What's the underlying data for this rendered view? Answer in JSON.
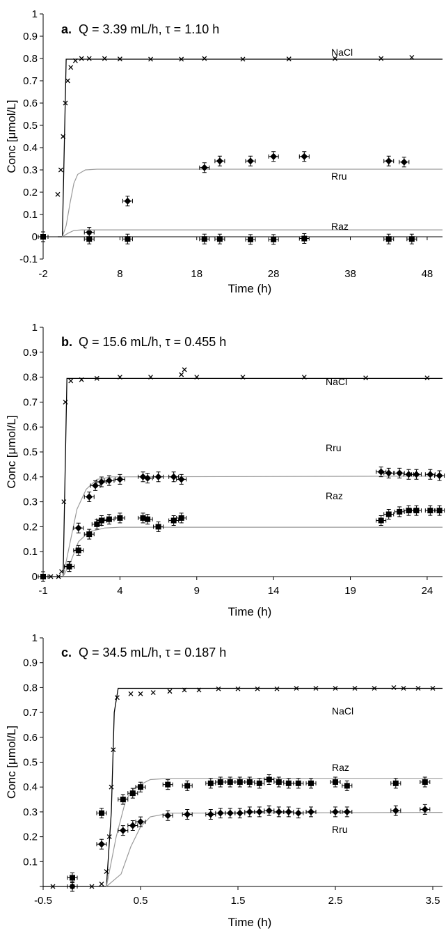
{
  "figure": {
    "colors": {
      "model_line": "#9a9a9a",
      "nacl_line": "#000000",
      "markers": "#000000",
      "axis": "#000000"
    },
    "ylabel": "Conc [μmol/L]",
    "xlabel": "Time (h)"
  },
  "chart_data": [
    {
      "type": "scatter",
      "panel": "a.",
      "title": "Q = 3.39 mL/h, τ = 1.10 h",
      "xlabel": "Time (h)",
      "ylabel": "Conc [μmol/L]",
      "xlim": [
        -2,
        50
      ],
      "ylim": [
        -0.1,
        1
      ],
      "xticks": [
        -2,
        8,
        18,
        28,
        38,
        48
      ],
      "yticks": [
        -0.1,
        0,
        0.1,
        0.2,
        0.3,
        0.4,
        0.5,
        0.6,
        0.7,
        0.8,
        0.9,
        1
      ],
      "yticks_text": [
        "-0.1",
        "0",
        "0.1",
        "0.2",
        "0.3",
        "0.4",
        "0.5",
        "0.6",
        "0.7",
        "0.8",
        "0.9",
        "1"
      ],
      "xticks_text": [
        "-2",
        "8",
        "18",
        "28",
        "38",
        "48"
      ],
      "grid": false,
      "series": [
        {
          "name": "NaCl",
          "marker": "x",
          "model": [
            [
              -0.1,
              0
            ],
            [
              0.5,
              0
            ],
            [
              1,
              0.797
            ],
            [
              50,
              0.797
            ]
          ],
          "points": [
            [
              -0.1,
              0.19
            ],
            [
              0.3,
              0.3
            ],
            [
              0.6,
              0.45
            ],
            [
              0.9,
              0.6
            ],
            [
              1.2,
              0.7
            ],
            [
              1.6,
              0.76
            ],
            [
              2.2,
              0.79
            ],
            [
              3,
              0.8
            ],
            [
              4,
              0.8
            ],
            [
              6,
              0.8
            ],
            [
              8,
              0.798
            ],
            [
              12,
              0.797
            ],
            [
              16,
              0.797
            ],
            [
              19,
              0.8
            ],
            [
              24,
              0.797
            ],
            [
              30,
              0.798
            ],
            [
              36,
              0.8
            ],
            [
              42,
              0.8
            ],
            [
              46,
              0.805
            ]
          ]
        },
        {
          "name": "Rru",
          "marker": "diamond",
          "model": [
            [
              0.5,
              0
            ],
            [
              1,
              0.05
            ],
            [
              1.5,
              0.15
            ],
            [
              2,
              0.24
            ],
            [
              2.5,
              0.28
            ],
            [
              3.5,
              0.3
            ],
            [
              5,
              0.303
            ],
            [
              50,
              0.303
            ]
          ],
          "points": [
            [
              4,
              0.02
            ],
            [
              9,
              0.16
            ],
            [
              19,
              0.31
            ],
            [
              21,
              0.34
            ],
            [
              25,
              0.34
            ],
            [
              28,
              0.36
            ],
            [
              32,
              0.36
            ],
            [
              43,
              0.34
            ],
            [
              45,
              0.335
            ]
          ]
        },
        {
          "name": "Raz",
          "marker": "square",
          "model": [
            [
              0.5,
              0
            ],
            [
              1.2,
              0.015
            ],
            [
              2,
              0.028
            ],
            [
              3,
              0.031
            ],
            [
              50,
              0.031
            ]
          ],
          "points": [
            [
              -2,
              0
            ],
            [
              4,
              -0.01
            ],
            [
              9,
              -0.01
            ],
            [
              19,
              -0.01
            ],
            [
              21,
              -0.01
            ],
            [
              25,
              -0.012
            ],
            [
              28,
              -0.012
            ],
            [
              32,
              -0.008
            ],
            [
              43,
              -0.01
            ],
            [
              46,
              -0.01
            ]
          ]
        }
      ]
    },
    {
      "type": "scatter",
      "panel": "b.",
      "title": "Q = 15.6 mL/h, τ = 0.455 h",
      "xlabel": "Time (h)",
      "ylabel": "Conc [μmol/L]",
      "xlim": [
        -1,
        25
      ],
      "ylim": [
        0,
        1
      ],
      "xticks": [
        -1,
        4,
        9,
        14,
        19,
        24
      ],
      "yticks": [
        0,
        0.1,
        0.2,
        0.3,
        0.4,
        0.5,
        0.6,
        0.7,
        0.8,
        0.9,
        1
      ],
      "yticks_text": [
        "0",
        "0.1",
        "0.2",
        "0.3",
        "0.4",
        "0.5",
        "0.6",
        "0.7",
        "0.8",
        "0.9",
        "1"
      ],
      "xticks_text": [
        "-1",
        "4",
        "9",
        "14",
        "19",
        "24"
      ],
      "grid": false,
      "series": [
        {
          "name": "NaCl",
          "marker": "x",
          "model": [
            [
              -1,
              0
            ],
            [
              0.3,
              0
            ],
            [
              0.55,
              0.795
            ],
            [
              25,
              0.795
            ]
          ],
          "points": [
            [
              -1,
              0
            ],
            [
              -0.5,
              0
            ],
            [
              0,
              0
            ],
            [
              0.2,
              0.02
            ],
            [
              0.35,
              0.3
            ],
            [
              0.45,
              0.7
            ],
            [
              0.8,
              0.785
            ],
            [
              1.5,
              0.79
            ],
            [
              2.5,
              0.795
            ],
            [
              4,
              0.8
            ],
            [
              6,
              0.8
            ],
            [
              8,
              0.81
            ],
            [
              8.2,
              0.83
            ],
            [
              9,
              0.8
            ],
            [
              12,
              0.8
            ],
            [
              16,
              0.8
            ],
            [
              20,
              0.797
            ],
            [
              24,
              0.797
            ]
          ]
        },
        {
          "name": "Rru",
          "marker": "diamond",
          "model": [
            [
              0.3,
              0
            ],
            [
              0.7,
              0.12
            ],
            [
              1.2,
              0.27
            ],
            [
              1.8,
              0.35
            ],
            [
              2.5,
              0.39
            ],
            [
              3.5,
              0.4
            ],
            [
              25,
              0.403
            ]
          ],
          "points": [
            [
              0.7,
              0.04
            ],
            [
              1.3,
              0.195
            ],
            [
              2,
              0.32
            ],
            [
              2.4,
              0.365
            ],
            [
              2.8,
              0.38
            ],
            [
              3.3,
              0.385
            ],
            [
              4,
              0.39
            ],
            [
              5.5,
              0.4
            ],
            [
              5.8,
              0.395
            ],
            [
              6.5,
              0.4
            ],
            [
              7.5,
              0.4
            ],
            [
              8,
              0.39
            ],
            [
              21,
              0.42
            ],
            [
              21.5,
              0.415
            ],
            [
              22.2,
              0.415
            ],
            [
              22.8,
              0.41
            ],
            [
              23.3,
              0.41
            ],
            [
              24.2,
              0.41
            ],
            [
              24.8,
              0.405
            ]
          ]
        },
        {
          "name": "Raz",
          "marker": "square",
          "model": [
            [
              0.3,
              0
            ],
            [
              0.8,
              0.06
            ],
            [
              1.3,
              0.14
            ],
            [
              2,
              0.18
            ],
            [
              3,
              0.195
            ],
            [
              4,
              0.198
            ],
            [
              25,
              0.198
            ]
          ],
          "points": [
            [
              -1,
              0
            ],
            [
              0.7,
              0.04
            ],
            [
              1.3,
              0.105
            ],
            [
              2,
              0.17
            ],
            [
              2.5,
              0.21
            ],
            [
              2.8,
              0.225
            ],
            [
              3.3,
              0.23
            ],
            [
              4,
              0.235
            ],
            [
              5.5,
              0.235
            ],
            [
              5.8,
              0.23
            ],
            [
              6.5,
              0.2
            ],
            [
              7.5,
              0.225
            ],
            [
              8,
              0.235
            ],
            [
              21,
              0.225
            ],
            [
              21.5,
              0.25
            ],
            [
              22.2,
              0.26
            ],
            [
              22.8,
              0.265
            ],
            [
              23.3,
              0.265
            ],
            [
              24.2,
              0.265
            ],
            [
              24.8,
              0.265
            ]
          ]
        }
      ]
    },
    {
      "type": "scatter",
      "panel": "c.",
      "title": "Q = 34.5 mL/h, τ = 0.187 h",
      "xlabel": "Time (h)",
      "ylabel": "Conc [μmol/L]",
      "xlim": [
        -0.5,
        3.6
      ],
      "ylim": [
        0,
        1
      ],
      "xticks": [
        -0.5,
        0.5,
        1.5,
        2.5,
        3.5
      ],
      "yticks": [
        0,
        0.1,
        0.2,
        0.3,
        0.4,
        0.5,
        0.6,
        0.7,
        0.8,
        0.9,
        1
      ],
      "yticks_text": [
        "",
        "0.1",
        "0.2",
        "0.3",
        "0.4",
        "0.5",
        "0.6",
        "0.7",
        "0.8",
        "0.9",
        "1"
      ],
      "xticks_text": [
        "-0.5",
        "0.5",
        "1.5",
        "2.5",
        "3.5"
      ],
      "grid": false,
      "series": [
        {
          "name": "NaCl",
          "marker": "x",
          "model": [
            [
              -0.5,
              0
            ],
            [
              0.15,
              0
            ],
            [
              0.2,
              0.3
            ],
            [
              0.23,
              0.7
            ],
            [
              0.27,
              0.797
            ],
            [
              3.6,
              0.797
            ]
          ],
          "points": [
            [
              -0.4,
              0
            ],
            [
              -0.2,
              0
            ],
            [
              0,
              0
            ],
            [
              0.1,
              0.01
            ],
            [
              0.15,
              0.06
            ],
            [
              0.18,
              0.2
            ],
            [
              0.2,
              0.4
            ],
            [
              0.22,
              0.55
            ],
            [
              0.26,
              0.76
            ],
            [
              0.4,
              0.775
            ],
            [
              0.5,
              0.775
            ],
            [
              0.63,
              0.78
            ],
            [
              0.8,
              0.785
            ],
            [
              0.95,
              0.79
            ],
            [
              1.1,
              0.79
            ],
            [
              1.3,
              0.795
            ],
            [
              1.5,
              0.795
            ],
            [
              1.7,
              0.795
            ],
            [
              1.9,
              0.795
            ],
            [
              2.1,
              0.797
            ],
            [
              2.3,
              0.797
            ],
            [
              2.5,
              0.797
            ],
            [
              2.7,
              0.797
            ],
            [
              2.9,
              0.797
            ],
            [
              3.1,
              0.8
            ],
            [
              3.2,
              0.797
            ],
            [
              3.35,
              0.797
            ],
            [
              3.5,
              0.797
            ]
          ]
        },
        {
          "name": "Raz",
          "marker": "square",
          "model": [
            [
              0.15,
              0
            ],
            [
              0.25,
              0.2
            ],
            [
              0.35,
              0.35
            ],
            [
              0.45,
              0.4
            ],
            [
              0.6,
              0.43
            ],
            [
              0.8,
              0.435
            ],
            [
              3.6,
              0.435
            ]
          ],
          "points": [
            [
              -0.2,
              0.035
            ],
            [
              0.1,
              0.295
            ],
            [
              0.32,
              0.35
            ],
            [
              0.42,
              0.375
            ],
            [
              0.5,
              0.4
            ],
            [
              0.78,
              0.41
            ],
            [
              0.98,
              0.405
            ],
            [
              1.22,
              0.415
            ],
            [
              1.32,
              0.42
            ],
            [
              1.42,
              0.42
            ],
            [
              1.52,
              0.42
            ],
            [
              1.62,
              0.42
            ],
            [
              1.72,
              0.415
            ],
            [
              1.82,
              0.43
            ],
            [
              1.92,
              0.42
            ],
            [
              2.02,
              0.415
            ],
            [
              2.12,
              0.415
            ],
            [
              2.25,
              0.415
            ],
            [
              2.5,
              0.42
            ],
            [
              2.62,
              0.405
            ],
            [
              3.12,
              0.415
            ],
            [
              3.42,
              0.42
            ]
          ]
        },
        {
          "name": "Rru",
          "marker": "diamond",
          "model": [
            [
              0.15,
              0
            ],
            [
              0.3,
              0.05
            ],
            [
              0.4,
              0.16
            ],
            [
              0.5,
              0.24
            ],
            [
              0.6,
              0.28
            ],
            [
              0.8,
              0.295
            ],
            [
              3.6,
              0.298
            ]
          ],
          "points": [
            [
              -0.2,
              0.0
            ],
            [
              0.1,
              0.17
            ],
            [
              0.32,
              0.225
            ],
            [
              0.42,
              0.245
            ],
            [
              0.5,
              0.26
            ],
            [
              0.78,
              0.285
            ],
            [
              0.98,
              0.29
            ],
            [
              1.22,
              0.29
            ],
            [
              1.32,
              0.295
            ],
            [
              1.42,
              0.295
            ],
            [
              1.52,
              0.295
            ],
            [
              1.62,
              0.3
            ],
            [
              1.72,
              0.3
            ],
            [
              1.82,
              0.305
            ],
            [
              1.92,
              0.3
            ],
            [
              2.02,
              0.3
            ],
            [
              2.12,
              0.295
            ],
            [
              2.25,
              0.3
            ],
            [
              2.5,
              0.3
            ],
            [
              2.62,
              0.3
            ],
            [
              3.12,
              0.305
            ],
            [
              3.42,
              0.31
            ]
          ]
        }
      ]
    }
  ]
}
